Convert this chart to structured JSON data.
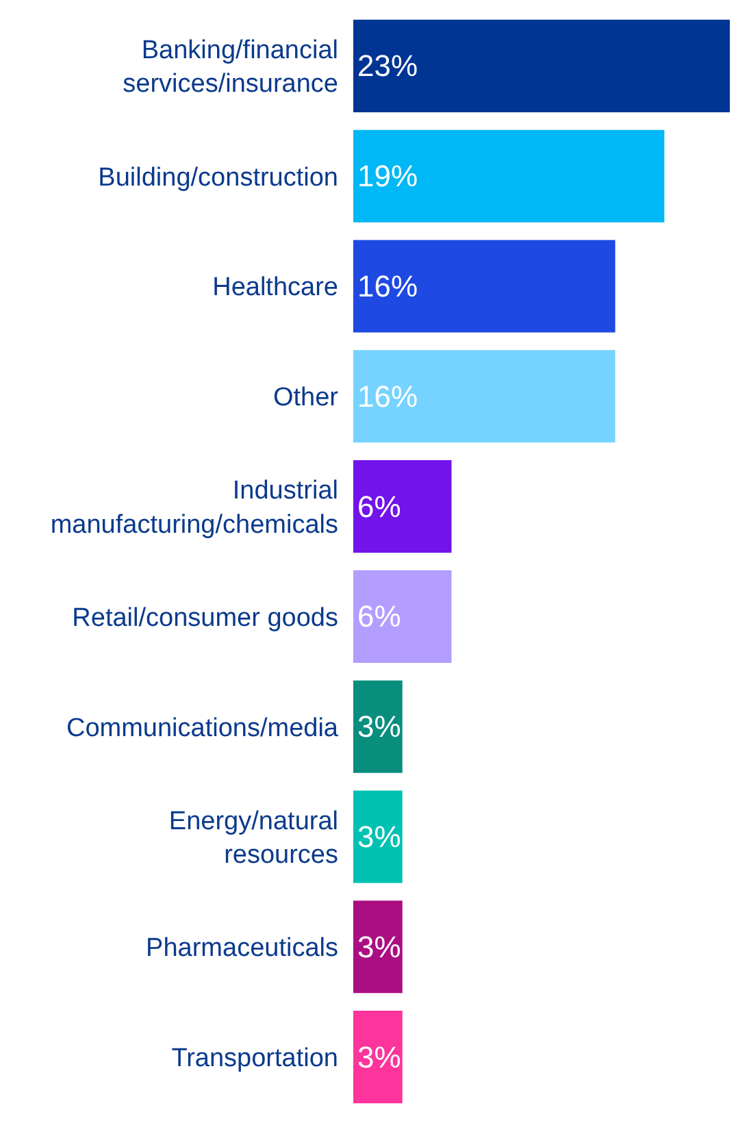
{
  "chart_data": {
    "type": "bar",
    "orientation": "horizontal",
    "data_labels": true,
    "categories": [
      "Banking/financial services/insurance",
      "Building/construction",
      "Healthcare",
      "Other",
      "Industrial manufacturing/chemicals",
      "Retail/consumer goods",
      "Communications/media",
      "Energy/natural resources",
      "Pharmaceuticals",
      "Transportation"
    ],
    "values": [
      23,
      19,
      16,
      16,
      6,
      6,
      3,
      3,
      3,
      3
    ],
    "value_labels": [
      "23%",
      "19%",
      "16%",
      "16%",
      "6%",
      "6%",
      "3%",
      "3%",
      "3%",
      "3%"
    ],
    "colors": [
      "#003594",
      "#00b8f5",
      "#1e49e2",
      "#76d3ff",
      "#7213ea",
      "#b39dff",
      "#098e7e",
      "#00c1b2",
      "#ab0d82",
      "#fd349c"
    ]
  }
}
